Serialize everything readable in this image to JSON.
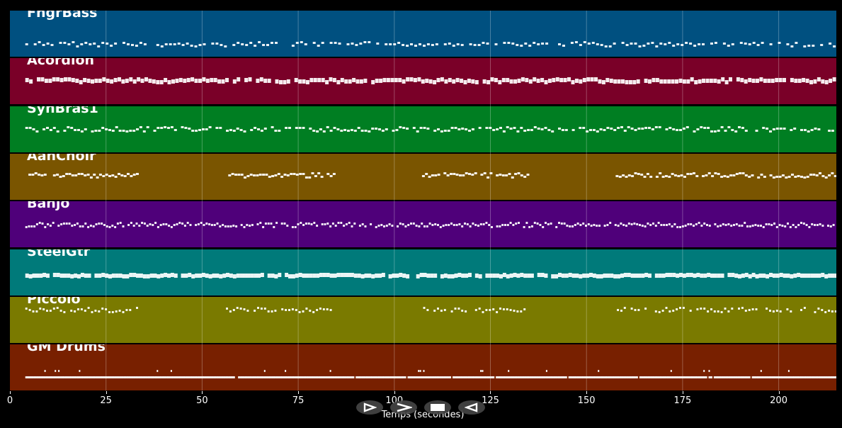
{
  "timeline": {
    "x_axis_label": "Temps (secondes)",
    "x_min": 0,
    "x_max": 215,
    "ticks": [
      0,
      25,
      50,
      75,
      100,
      125,
      150,
      175,
      200
    ]
  },
  "tracks": [
    {
      "name": "FngrBass",
      "color": "#005080",
      "pattern": "bass"
    },
    {
      "name": "Acordion",
      "color": "#7a0028",
      "pattern": "chords"
    },
    {
      "name": "SynBras1",
      "color": "#007e22",
      "pattern": "melody"
    },
    {
      "name": "AahChoir",
      "color": "#7a5500",
      "pattern": "phrases"
    },
    {
      "name": "Banjo",
      "color": "#4f007a",
      "pattern": "dense"
    },
    {
      "name": "SteelGtr",
      "color": "#007a7a",
      "pattern": "strum"
    },
    {
      "name": "Piccolo",
      "color": "#7a7a00",
      "pattern": "sparse"
    },
    {
      "name": "GM Drums",
      "color": "#782000",
      "pattern": "drums"
    }
  ],
  "controls": [
    {
      "name": "play-button",
      "icon": "play-outline-icon"
    },
    {
      "name": "fast-forward-button",
      "icon": "fast-forward-icon"
    },
    {
      "name": "stop-button",
      "icon": "stop-icon"
    },
    {
      "name": "rewind-button",
      "icon": "rewind-icon"
    }
  ]
}
